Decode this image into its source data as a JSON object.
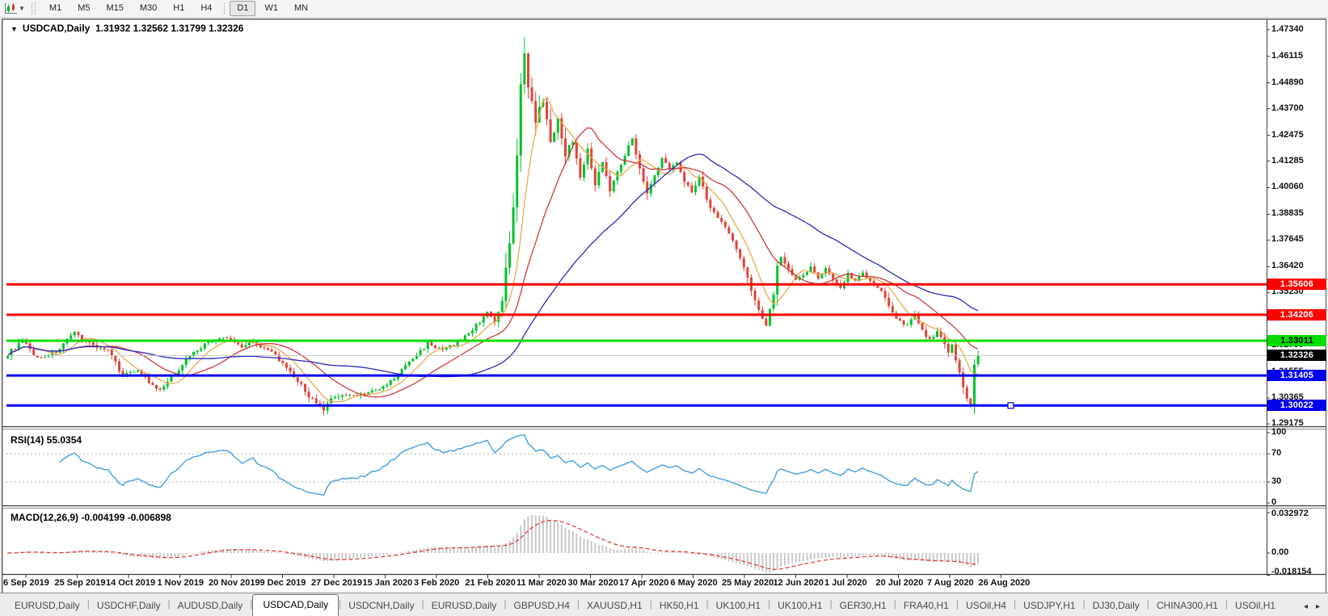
{
  "toolbar": {
    "timeframes": [
      "M1",
      "M5",
      "M15",
      "M30",
      "H1",
      "H4",
      "D1",
      "W1",
      "MN"
    ],
    "active": "D1",
    "group_break_before": "D1",
    "chart_type_icon": "candlestick-chart-icon"
  },
  "chart": {
    "title_text": "USDCAD,Daily  1.31932 1.32562 1.31799 1.32326",
    "symbol": "USDCAD",
    "period": "Daily"
  },
  "indicators": {
    "rsi": {
      "label": "RSI(14) 55.0354",
      "period": 14,
      "value": 55.0354,
      "axis_labels": [
        {
          "v": 100,
          "label": "100",
          "dashed": false
        },
        {
          "v": 70,
          "label": "70",
          "dashed": true
        },
        {
          "v": 30,
          "label": "30",
          "dashed": true
        },
        {
          "v": 0,
          "label": "0",
          "dashed": false
        }
      ],
      "line_color": "#4FA3DC"
    },
    "macd": {
      "label": "MACD(12,26,9) -0.004199 -0.006898",
      "fast": 12,
      "slow": 26,
      "signal_period": 9,
      "main_value": -0.004199,
      "signal_value": -0.006898,
      "axis_labels": [
        {
          "v": 0.032972,
          "label": "0.032972"
        },
        {
          "v": 0,
          "label": "0.00"
        },
        {
          "v": -0.018154,
          "label": "-0.018154"
        }
      ],
      "bar_color": "#C8C8C8",
      "signal_color": "#E03030"
    }
  },
  "price_axis": {
    "ticks": [
      "1.47340",
      "1.46115",
      "1.44890",
      "1.43700",
      "1.42475",
      "1.41285",
      "1.40060",
      "1.38835",
      "1.37645",
      "1.36420",
      "1.35230",
      "1.34005",
      "1.32780",
      "1.31555",
      "1.30365",
      "1.29175"
    ]
  },
  "time_axis": {
    "labels": [
      "6 Sep 2019",
      "25 Sep 2019",
      "14 Oct 2019",
      "1 Nov 2019",
      "20 Nov 2019",
      "9 Dec 2019",
      "27 Dec 2019",
      "15 Jan 2020",
      "3 Feb 2020",
      "21 Feb 2020",
      "11 Mar 2020",
      "30 Mar 2020",
      "17 Apr 2020",
      "6 May 2020",
      "25 May 2020",
      "12 Jun 2020",
      "1 Jul 2020",
      "20 Jul 2020",
      "7 Aug 2020",
      "26 Aug 2020"
    ]
  },
  "hlines": [
    {
      "price": 1.35606,
      "label": "1.35606",
      "color": "#FF0000",
      "thickness": 3,
      "label_bg": "#FF0000",
      "label_fg": "#FFFFFF"
    },
    {
      "price": 1.34206,
      "label": "1.34206",
      "color": "#FF0000",
      "thickness": 3,
      "label_bg": "#FF0000",
      "label_fg": "#FFFFFF"
    },
    {
      "price": 1.33011,
      "label": "1.33011",
      "color": "#00DC00",
      "thickness": 3,
      "label_bg": "#00DC00",
      "label_fg": "#000000"
    },
    {
      "price": 1.32326,
      "label": "1.32326",
      "color": "#C4C4C4",
      "thickness": 1,
      "label_bg": "#000000",
      "label_fg": "#FFFFFF",
      "role": "current-price"
    },
    {
      "price": 1.31405,
      "label": "1.31405",
      "color": "#0000EE",
      "thickness": 3,
      "label_bg": "#0000EE",
      "label_fg": "#FFFFFF"
    },
    {
      "price": 1.30022,
      "label": "1.30022",
      "color": "#0000EE",
      "thickness": 3,
      "label_bg": "#0000EE",
      "label_fg": "#FFFFFF",
      "handle": true
    }
  ],
  "tabs": {
    "items": [
      "EURUSD,Daily",
      "USDCHF,Daily",
      "AUDUSD,Daily",
      "USDCAD,Daily",
      "USDCNH,Daily",
      "EURUSD,Daily",
      "GBPUSD,H4",
      "XAUUSD,H1",
      "HK50,H1",
      "UK100,H1",
      "UK100,H1",
      "GER30,H1",
      "FRA40,H1",
      "USOil,H4",
      "USDJPY,H1",
      "DJ30,Daily",
      "CHINA300,H1",
      "USOil,H1"
    ],
    "active_index": 3,
    "scroll_left": "◂",
    "scroll_right": "▸"
  },
  "chart_data": {
    "type": "candlestick",
    "symbol": "USDCAD",
    "timeframe": "Daily",
    "candle_count": 262,
    "last_candle": {
      "open": 1.31932,
      "high": 1.32562,
      "low": 1.31799,
      "close": 1.32326
    },
    "price_range_visible": [
      1.29175,
      1.4734
    ],
    "anchors": [
      [
        0,
        1.324
      ],
      [
        4,
        1.33
      ],
      [
        8,
        1.322
      ],
      [
        13,
        1.325
      ],
      [
        18,
        1.3335
      ],
      [
        23,
        1.328
      ],
      [
        27,
        1.3255
      ],
      [
        31,
        1.314
      ],
      [
        35,
        1.317
      ],
      [
        39,
        1.309
      ],
      [
        41,
        1.307
      ],
      [
        45,
        1.315
      ],
      [
        49,
        1.3235
      ],
      [
        54,
        1.3295
      ],
      [
        59,
        1.3315
      ],
      [
        63,
        1.3275
      ],
      [
        66,
        1.33
      ],
      [
        69,
        1.3265
      ],
      [
        72,
        1.3235
      ],
      [
        75,
        1.317
      ],
      [
        78,
        1.3115
      ],
      [
        83,
        1.3005
      ],
      [
        85,
        1.298
      ],
      [
        88,
        1.305
      ],
      [
        92,
        1.3048
      ],
      [
        96,
        1.3058
      ],
      [
        100,
        1.3075
      ],
      [
        104,
        1.3125
      ],
      [
        108,
        1.3205
      ],
      [
        110,
        1.3235
      ],
      [
        113,
        1.329
      ],
      [
        117,
        1.3255
      ],
      [
        121,
        1.3295
      ],
      [
        124,
        1.3335
      ],
      [
        127,
        1.339
      ],
      [
        129,
        1.344
      ],
      [
        131,
        1.338
      ],
      [
        133,
        1.348
      ],
      [
        134,
        1.362
      ],
      [
        135,
        1.375
      ],
      [
        136,
        1.39
      ],
      [
        137,
        1.415
      ],
      [
        138,
        1.45
      ],
      [
        139,
        1.462
      ],
      [
        140,
        1.448
      ],
      [
        142,
        1.43
      ],
      [
        144,
        1.442
      ],
      [
        146,
        1.42
      ],
      [
        148,
        1.434
      ],
      [
        150,
        1.415
      ],
      [
        152,
        1.423
      ],
      [
        154,
        1.406
      ],
      [
        156,
        1.418
      ],
      [
        158,
        1.402
      ],
      [
        160,
        1.413
      ],
      [
        162,
        1.399
      ],
      [
        164,
        1.408
      ],
      [
        166,
        1.416
      ],
      [
        168,
        1.423
      ],
      [
        170,
        1.41
      ],
      [
        172,
        1.398
      ],
      [
        174,
        1.406
      ],
      [
        176,
        1.414
      ],
      [
        178,
        1.409
      ],
      [
        180,
        1.413
      ],
      [
        182,
        1.404
      ],
      [
        184,
        1.3985
      ],
      [
        186,
        1.406
      ],
      [
        188,
        1.395
      ],
      [
        190,
        1.389
      ],
      [
        192,
        1.385
      ],
      [
        194,
        1.38
      ],
      [
        196,
        1.372
      ],
      [
        198,
        1.364
      ],
      [
        200,
        1.353
      ],
      [
        202,
        1.345
      ],
      [
        204,
        1.337
      ],
      [
        206,
        1.352
      ],
      [
        207,
        1.364
      ],
      [
        208,
        1.369
      ],
      [
        210,
        1.3625
      ],
      [
        212,
        1.3575
      ],
      [
        214,
        1.36
      ],
      [
        216,
        1.364
      ],
      [
        218,
        1.3595
      ],
      [
        220,
        1.363
      ],
      [
        222,
        1.3585
      ],
      [
        224,
        1.3545
      ],
      [
        226,
        1.361
      ],
      [
        228,
        1.358
      ],
      [
        230,
        1.3615
      ],
      [
        232,
        1.358
      ],
      [
        234,
        1.3545
      ],
      [
        236,
        1.3505
      ],
      [
        238,
        1.3425
      ],
      [
        240,
        1.3395
      ],
      [
        242,
        1.337
      ],
      [
        244,
        1.3425
      ],
      [
        246,
        1.3345
      ],
      [
        248,
        1.3305
      ],
      [
        250,
        1.334
      ],
      [
        252,
        1.329
      ],
      [
        253,
        1.325
      ],
      [
        254,
        1.3285
      ],
      [
        255,
        1.321
      ],
      [
        256,
        1.315
      ],
      [
        257,
        1.3085
      ],
      [
        258,
        1.3035
      ],
      [
        259,
        1.3
      ],
      [
        260,
        1.319
      ],
      [
        261,
        1.32326
      ]
    ],
    "moving_averages": [
      {
        "period": 8,
        "color": "#E8A94C"
      },
      {
        "period": 20,
        "color": "#D03A3A"
      },
      {
        "period": 50,
        "color": "#2A2AC0"
      }
    ],
    "colors": {
      "bull": "#00C22A",
      "bear": "#E04438",
      "background": "#FFFFFF"
    }
  }
}
